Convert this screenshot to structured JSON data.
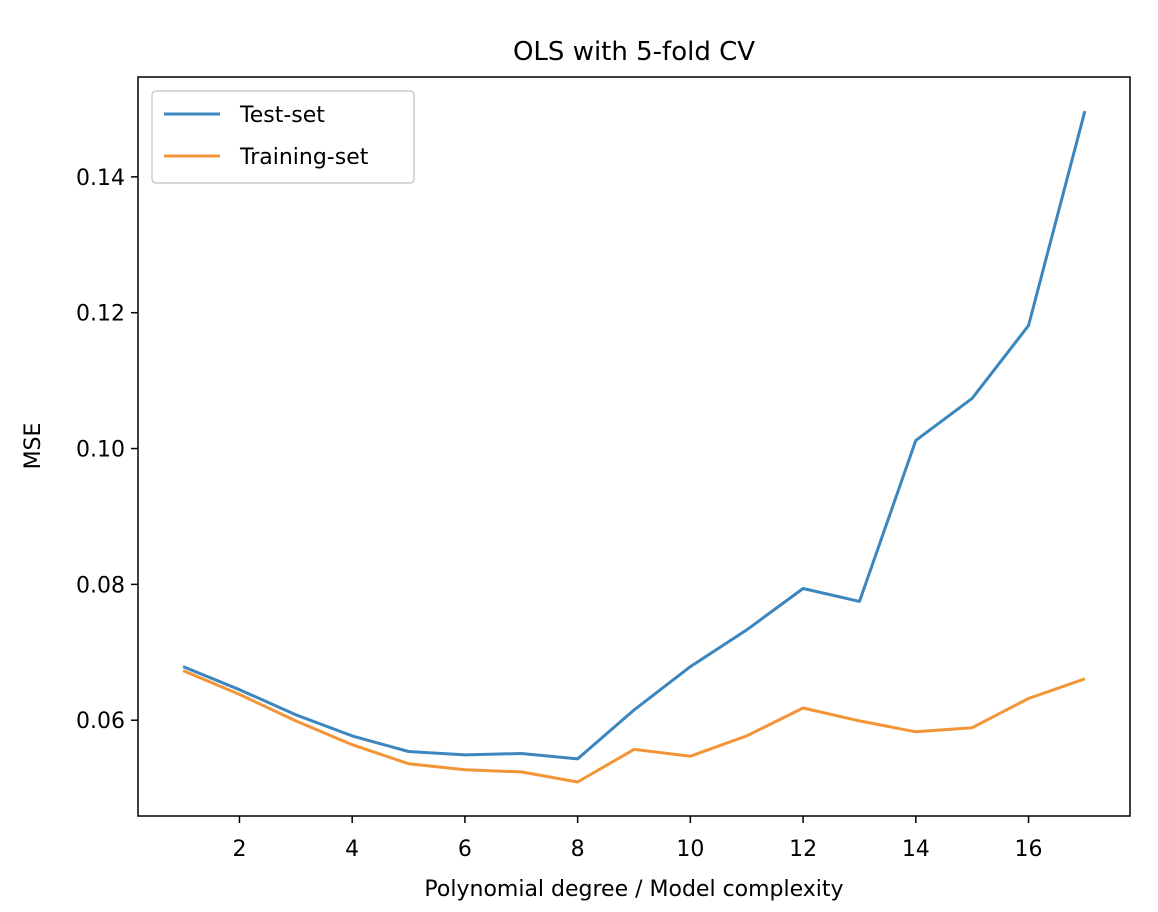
{
  "chart_data": {
    "type": "line",
    "title": "OLS with 5-fold CV",
    "xlabel": "Polynomial degree / Model complexity",
    "ylabel": "MSE",
    "xlim": [
      0.2,
      17.8
    ],
    "ylim": [
      0.0459,
      0.1547
    ],
    "xticks": [
      2,
      4,
      6,
      8,
      10,
      12,
      14,
      16
    ],
    "yticks": [
      0.06,
      0.08,
      0.1,
      0.12,
      0.14
    ],
    "ytick_labels": [
      "0.06",
      "0.08",
      "0.10",
      "0.12",
      "0.14"
    ],
    "grid": false,
    "legend_position": "top-left",
    "x": [
      1,
      2,
      3,
      4,
      5,
      6,
      7,
      8,
      9,
      10,
      11,
      12,
      13,
      14,
      15,
      16,
      17
    ],
    "series": [
      {
        "name": "Test-set",
        "color": "#3b86bf",
        "values": [
          0.0679,
          0.0645,
          0.0608,
          0.0577,
          0.0554,
          0.0549,
          0.0551,
          0.0543,
          0.0615,
          0.0679,
          0.0733,
          0.0794,
          0.0775,
          0.1012,
          0.1074,
          0.1181,
          0.1497
        ]
      },
      {
        "name": "Training-set",
        "color": "#f39537",
        "values": [
          0.0673,
          0.0638,
          0.0599,
          0.0564,
          0.0536,
          0.0527,
          0.0524,
          0.0509,
          0.0557,
          0.0547,
          0.0577,
          0.0618,
          0.0599,
          0.0583,
          0.0589,
          0.0632,
          0.0661
        ]
      }
    ]
  }
}
